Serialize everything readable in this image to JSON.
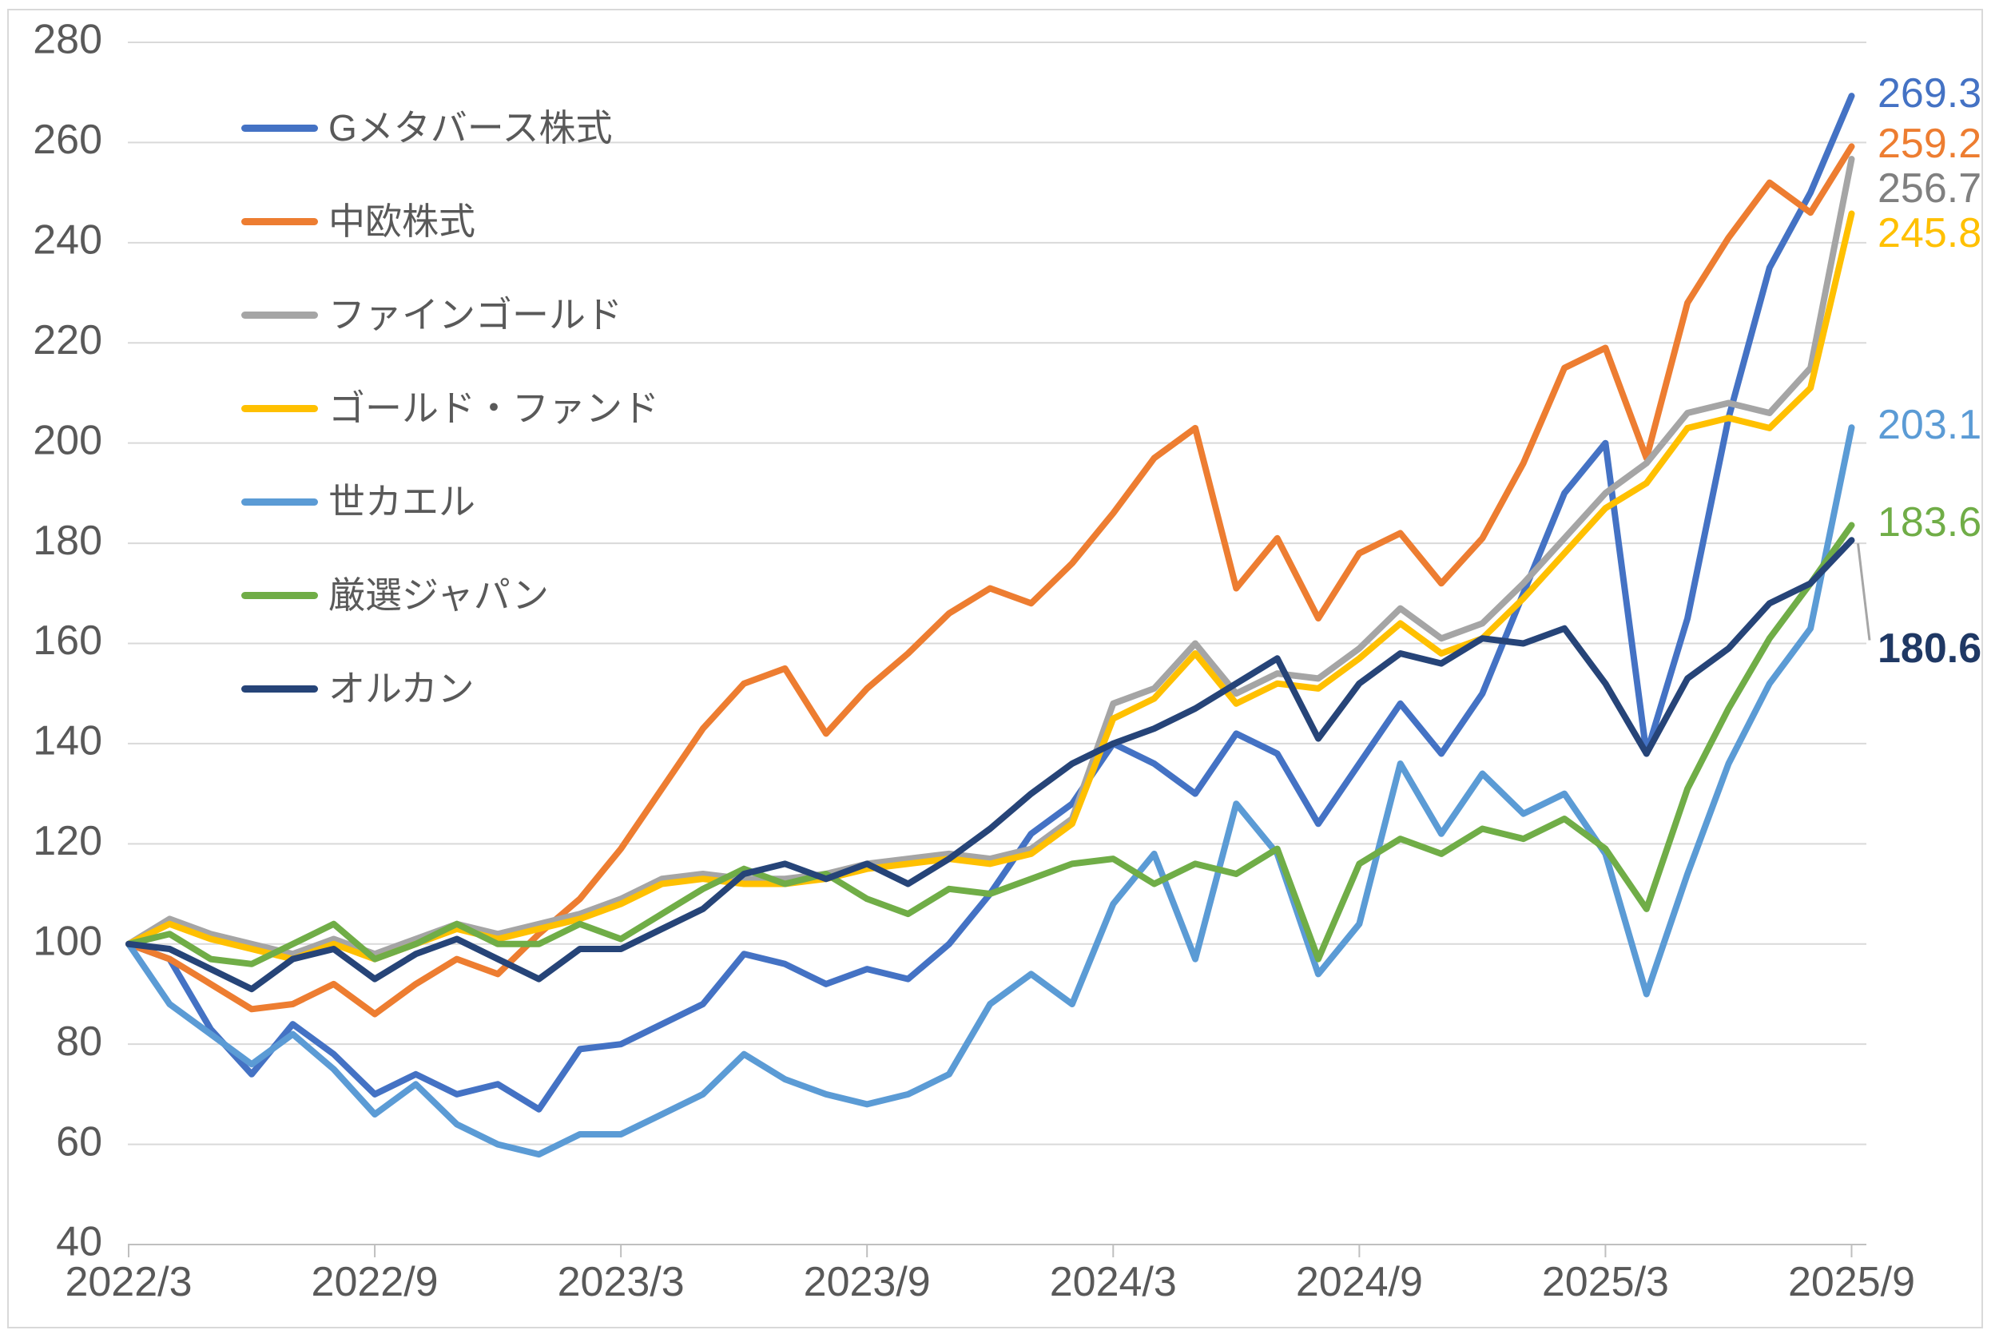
{
  "chart_data": {
    "type": "line",
    "title": "",
    "xlabel": "",
    "ylabel": "",
    "x_tick_labels": [
      "2022/3",
      "2022/9",
      "2023/3",
      "2023/9",
      "2024/3",
      "2024/9",
      "2025/3",
      "2025/9"
    ],
    "x_tick_interval_months": 6,
    "x_unit": "month",
    "x_range_months": 42,
    "y_ticks": [
      280,
      260,
      240,
      220,
      200,
      180,
      160,
      140,
      120,
      100,
      80,
      60,
      40
    ],
    "ylim": [
      40,
      280
    ],
    "grid": "horizontal",
    "legend_position": "top-left-overlay",
    "axis_text_color": "#595959",
    "grid_color": "#D9D9D9",
    "axis_line_color": "#BFBFBF",
    "leader_line_color": "#A6A6A6",
    "series": [
      {
        "name": "Gメタバース株式",
        "color": "#4472C4",
        "end_label": "269.3",
        "end_label_color": "#4472C4",
        "bold_end_label": false,
        "callout": false,
        "values": [
          100,
          97,
          83,
          74,
          84,
          78,
          70,
          74,
          70,
          72,
          67,
          79,
          80,
          84,
          88,
          98,
          96,
          92,
          95,
          93,
          100,
          110,
          122,
          128,
          140,
          136,
          130,
          142,
          138,
          124,
          136,
          148,
          138,
          150,
          170,
          190,
          200,
          138,
          165,
          205,
          235,
          250,
          269.3
        ]
      },
      {
        "name": "中欧株式",
        "color": "#ED7D31",
        "end_label": "259.2",
        "end_label_color": "#ED7D31",
        "bold_end_label": false,
        "callout": false,
        "values": [
          100,
          97,
          92,
          87,
          88,
          92,
          86,
          92,
          97,
          94,
          102,
          109,
          119,
          131,
          143,
          152,
          155,
          142,
          151,
          158,
          166,
          171,
          168,
          176,
          186,
          197,
          203,
          171,
          181,
          165,
          178,
          182,
          172,
          181,
          196,
          215,
          219,
          197,
          228,
          241,
          252,
          246,
          259.2
        ]
      },
      {
        "name": "ファインゴールド",
        "color": "#A5A5A5",
        "end_label": "256.7",
        "end_label_color": "#808080",
        "bold_end_label": false,
        "callout": false,
        "values": [
          100,
          105,
          102,
          100,
          98,
          101,
          98,
          101,
          104,
          102,
          104,
          106,
          109,
          113,
          114,
          113,
          113,
          114,
          116,
          117,
          118,
          117,
          119,
          125,
          148,
          151,
          160,
          150,
          154,
          153,
          159,
          167,
          161,
          164,
          172,
          181,
          190,
          196,
          206,
          208,
          206,
          215,
          256.7
        ]
      },
      {
        "name": "ゴールド・ファンド",
        "color": "#FFC000",
        "end_label": "245.8",
        "end_label_color": "#FFC000",
        "bold_end_label": false,
        "callout": false,
        "values": [
          100,
          104,
          101,
          99,
          97,
          100,
          97,
          100,
          103,
          101,
          103,
          105,
          108,
          112,
          113,
          112,
          112,
          113,
          115,
          116,
          117,
          116,
          118,
          124,
          145,
          149,
          158,
          148,
          152,
          151,
          157,
          164,
          158,
          161,
          169,
          178,
          187,
          192,
          203,
          205,
          203,
          211,
          245.8
        ]
      },
      {
        "name": "世カエル",
        "color": "#5B9BD5",
        "end_label": "203.1",
        "end_label_color": "#5B9BD5",
        "bold_end_label": false,
        "callout": false,
        "values": [
          100,
          88,
          82,
          76,
          82,
          75,
          66,
          72,
          64,
          60,
          58,
          62,
          62,
          66,
          70,
          78,
          73,
          70,
          68,
          70,
          74,
          88,
          94,
          88,
          108,
          118,
          97,
          128,
          118,
          94,
          104,
          136,
          122,
          134,
          126,
          130,
          118,
          90,
          114,
          136,
          152,
          163,
          203.1
        ]
      },
      {
        "name": "厳選ジャパン",
        "color": "#70AD47",
        "end_label": "183.6",
        "end_label_color": "#70AD47",
        "bold_end_label": false,
        "callout": false,
        "values": [
          100,
          102,
          97,
          96,
          100,
          104,
          97,
          100,
          104,
          100,
          100,
          104,
          101,
          106,
          111,
          115,
          112,
          114,
          109,
          106,
          111,
          110,
          113,
          116,
          117,
          112,
          116,
          114,
          119,
          97,
          116,
          121,
          118,
          123,
          121,
          125,
          119,
          107,
          131,
          147,
          161,
          172,
          183.6
        ]
      },
      {
        "name": "オルカン",
        "color": "#264478",
        "end_label": "180.6",
        "end_label_color": "#1F3864",
        "bold_end_label": true,
        "callout": true,
        "values": [
          100,
          99,
          95,
          91,
          97,
          99,
          93,
          98,
          101,
          97,
          93,
          99,
          99,
          103,
          107,
          114,
          116,
          113,
          116,
          112,
          117,
          123,
          130,
          136,
          140,
          143,
          147,
          152,
          157,
          141,
          152,
          158,
          156,
          161,
          160,
          163,
          152,
          138,
          153,
          159,
          168,
          172,
          180.6
        ]
      }
    ]
  }
}
